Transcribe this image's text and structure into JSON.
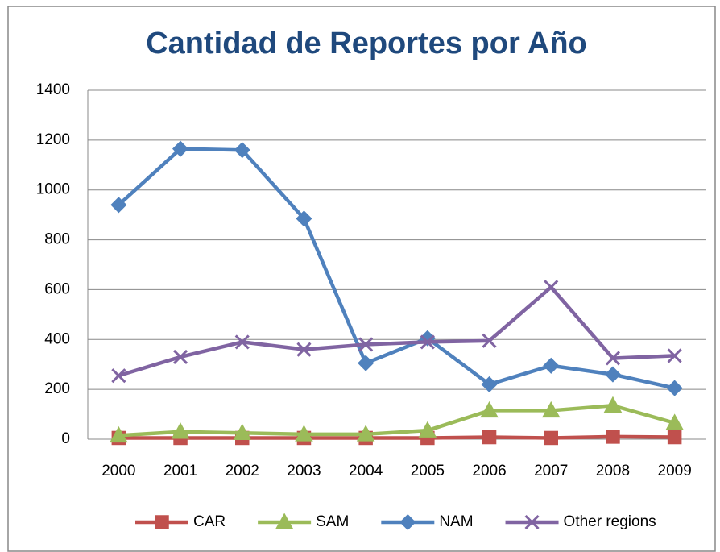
{
  "chart_data": {
    "type": "line",
    "title": "Cantidad de Reportes por Año",
    "categories": [
      "2000",
      "2001",
      "2002",
      "2003",
      "2004",
      "2005",
      "2006",
      "2007",
      "2008",
      "2009"
    ],
    "series": [
      {
        "name": "CAR",
        "color": "#c0504d",
        "marker": "square",
        "values": [
          5,
          5,
          5,
          5,
          5,
          5,
          8,
          5,
          10,
          8
        ]
      },
      {
        "name": "SAM",
        "color": "#9bbb59",
        "marker": "triangle",
        "values": [
          15,
          30,
          25,
          20,
          20,
          35,
          115,
          115,
          135,
          65
        ]
      },
      {
        "name": "NAM",
        "color": "#4f81bd",
        "marker": "diamond",
        "values": [
          940,
          1165,
          1160,
          885,
          305,
          405,
          220,
          295,
          260,
          205
        ]
      },
      {
        "name": "Other regions",
        "color": "#8064a2",
        "marker": "x",
        "values": [
          255,
          330,
          390,
          360,
          380,
          390,
          395,
          610,
          325,
          335
        ]
      }
    ],
    "ylim": [
      0,
      1400
    ],
    "yticks": [
      0,
      200,
      400,
      600,
      800,
      1000,
      1200,
      1400
    ],
    "grid": true,
    "legend": "bottom"
  }
}
